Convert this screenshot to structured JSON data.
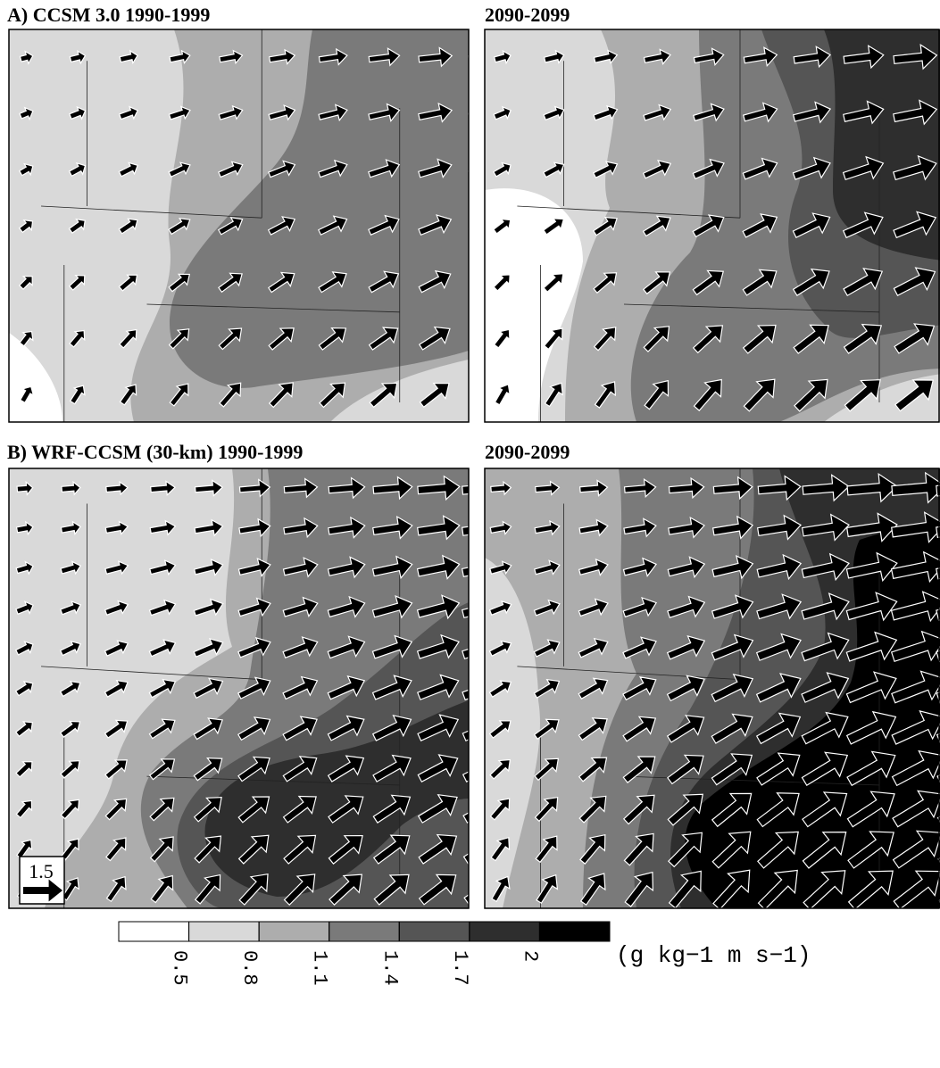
{
  "panels": [
    {
      "title": "A) CCSM 3.0 1990-1999"
    },
    {
      "title": "2090-2099"
    },
    {
      "title": "B) WRF-CCSM (30-km) 1990-1999"
    },
    {
      "title": "2090-2099"
    }
  ],
  "reference_vector": {
    "value": 1.5
  },
  "colorbar": {
    "colors": [
      "#ffffff",
      "#d9d9d9",
      "#adadad",
      "#7a7a7a",
      "#555555",
      "#2e2e2e",
      "#000000"
    ],
    "ticks": [
      0.5,
      0.8,
      1.1,
      1.4,
      1.7,
      2
    ],
    "unit": "(g kg−1 m s−1)"
  }
}
